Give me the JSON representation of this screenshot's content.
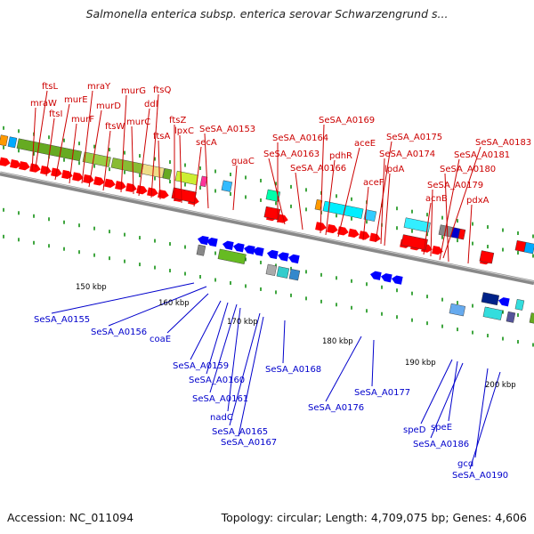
{
  "title": "Salmonella enterica subsp. enterica serovar Schwarzengrund s...",
  "footer": {
    "accession": "Accession: NC_011094",
    "summary": "Topology: circular; Length: 4,709,075 bp; Genes: 4,606"
  },
  "colors": {
    "forward_label": "#cc0000",
    "reverse_label": "#0000cc",
    "forward_arrow": "#ff0000",
    "reverse_arrow": "#0000ff",
    "backbone": "#888888",
    "tick": "#008800"
  },
  "ticks": [
    {
      "label": "150 kbp"
    },
    {
      "label": "160 kbp"
    },
    {
      "label": "170 kbp"
    },
    {
      "label": "180 kbp"
    },
    {
      "label": "190 kbp"
    },
    {
      "label": "200 kbp"
    }
  ],
  "top_labels": [
    {
      "text": "ftsL"
    },
    {
      "text": "mraW"
    },
    {
      "text": "ftsI"
    },
    {
      "text": "murE"
    },
    {
      "text": "murF"
    },
    {
      "text": "mraY"
    },
    {
      "text": "murD"
    },
    {
      "text": "ftsW"
    },
    {
      "text": "murG"
    },
    {
      "text": "murC"
    },
    {
      "text": "ddl"
    },
    {
      "text": "ftsQ"
    },
    {
      "text": "ftsA"
    },
    {
      "text": "ftsZ"
    },
    {
      "text": "lpxC"
    },
    {
      "text": "secA"
    },
    {
      "text": "SeSA_A0153"
    },
    {
      "text": "guaC"
    },
    {
      "text": "SeSA_A0164"
    },
    {
      "text": "SeSA_A0163"
    },
    {
      "text": "SeSA_A0166"
    },
    {
      "text": "SeSA_A0169"
    },
    {
      "text": "pdhR"
    },
    {
      "text": "aceE"
    },
    {
      "text": "aceF"
    },
    {
      "text": "SeSA_A0175"
    },
    {
      "text": "SeSA_A0174"
    },
    {
      "text": "lpdA"
    },
    {
      "text": "SeSA_A0183"
    },
    {
      "text": "SeSA_A0181"
    },
    {
      "text": "SeSA_A0180"
    },
    {
      "text": "SeSA_A0179"
    },
    {
      "text": "acnB"
    },
    {
      "text": "pdxA"
    }
  ],
  "bottom_labels": [
    {
      "text": "SeSA_A0155"
    },
    {
      "text": "SeSA_A0156"
    },
    {
      "text": "coaE"
    },
    {
      "text": "SeSA_A0159"
    },
    {
      "text": "SeSA_A0160"
    },
    {
      "text": "SeSA_A0161"
    },
    {
      "text": "nadC"
    },
    {
      "text": "SeSA_A0165"
    },
    {
      "text": "SeSA_A0167"
    },
    {
      "text": "SeSA_A0168"
    },
    {
      "text": "SeSA_A0176"
    },
    {
      "text": "SeSA_A0177"
    },
    {
      "text": "speD"
    },
    {
      "text": "speE"
    },
    {
      "text": "SeSA_A0186"
    },
    {
      "text": "gcd"
    },
    {
      "text": "SeSA_A0190"
    }
  ]
}
